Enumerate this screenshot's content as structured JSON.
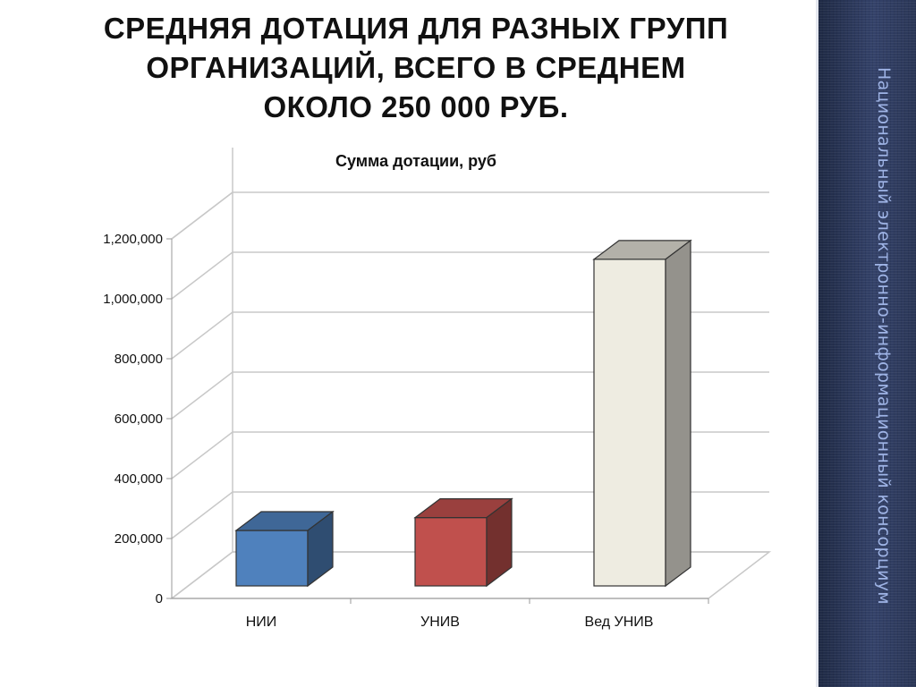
{
  "slide": {
    "title_lines": [
      "СРЕДНЯЯ ДОТАЦИЯ ДЛЯ РАЗНЫХ ГРУПП",
      "ОРГАНИЗАЦИЙ, ВСЕГО В СРЕДНЕМ",
      "ОКОЛО 250 000 РУБ."
    ],
    "side_label": "Национальный электронно-информационный консорциум"
  },
  "chart_data": {
    "type": "bar",
    "title": "Сумма дотации, руб",
    "categories": [
      "НИИ",
      "УНИВ",
      "Вед УНИВ"
    ],
    "values": [
      185000,
      228000,
      1090000
    ],
    "bar_colors": [
      "#4f81bd",
      "#c0504d",
      "#eeece1"
    ],
    "ylim": [
      0,
      1200000
    ],
    "yticks": [
      0,
      200000,
      400000,
      600000,
      800000,
      1000000,
      1200000
    ],
    "ytick_labels": [
      "0",
      "200,000",
      "400,000",
      "600,000",
      "800,000",
      "1,000,000",
      "1,200,000"
    ],
    "grid": true,
    "style": "3d"
  }
}
